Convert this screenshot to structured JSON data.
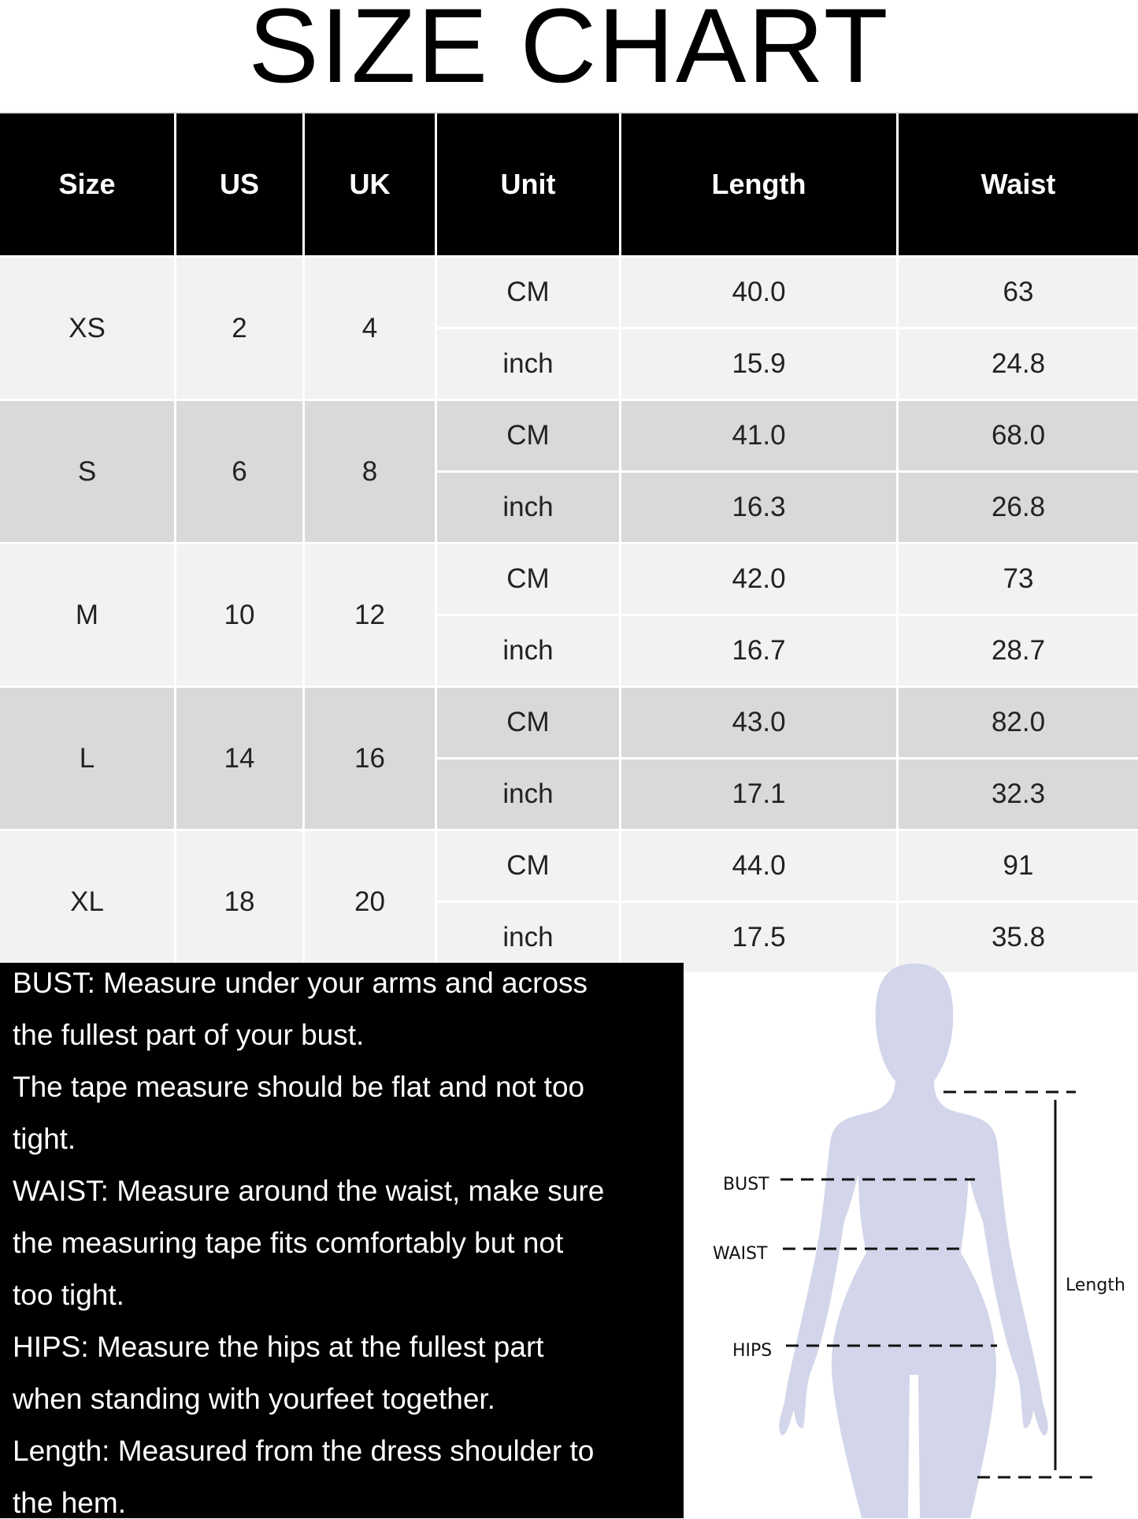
{
  "title": "SIZE CHART",
  "table": {
    "headers": [
      "Size",
      "US",
      "UK",
      "Unit",
      "Length",
      "Waist"
    ],
    "rows": [
      {
        "size": "XS",
        "us": "2",
        "uk": "4",
        "cm": {
          "unit": "CM",
          "length": "40.0",
          "waist": "63"
        },
        "inch": {
          "unit": "inch",
          "length": "15.9",
          "waist": "24.8"
        }
      },
      {
        "size": "S",
        "us": "6",
        "uk": "8",
        "cm": {
          "unit": "CM",
          "length": "41.0",
          "waist": "68.0"
        },
        "inch": {
          "unit": "inch",
          "length": "16.3",
          "waist": "26.8"
        }
      },
      {
        "size": "M",
        "us": "10",
        "uk": "12",
        "cm": {
          "unit": "CM",
          "length": "42.0",
          "waist": "73"
        },
        "inch": {
          "unit": "inch",
          "length": "16.7",
          "waist": "28.7"
        }
      },
      {
        "size": "L",
        "us": "14",
        "uk": "16",
        "cm": {
          "unit": "CM",
          "length": "43.0",
          "waist": "82.0"
        },
        "inch": {
          "unit": "inch",
          "length": "17.1",
          "waist": "32.3"
        }
      },
      {
        "size": "XL",
        "us": "18",
        "uk": "20",
        "cm": {
          "unit": "CM",
          "length": "44.0",
          "waist": "91"
        },
        "inch": {
          "unit": "inch",
          "length": "17.5",
          "waist": "35.8"
        }
      }
    ]
  },
  "notes": [
    "BUST: Measure under your arms and across",
    "the fullest part of your bust.",
    "The tape measure should be flat and not too",
    "tight.",
    "WAIST: Measure around the waist, make sure",
    "the measuring tape fits comfortably but not",
    "too tight.",
    "HIPS: Measure the hips at the fullest part",
    "when standing with yourfeet together.",
    "Length: Measured from the dress shoulder to",
    "the hem."
  ],
  "figure": {
    "bust_label": "BUST",
    "waist_label": "WAIST",
    "hips_label": "HIPS",
    "length_label": "Length",
    "silhouette_color": "#d3d6ea"
  },
  "colors": {
    "header_bg": "#000000",
    "row_light": "#f2f2f2",
    "row_dark": "#d9d9d9"
  }
}
